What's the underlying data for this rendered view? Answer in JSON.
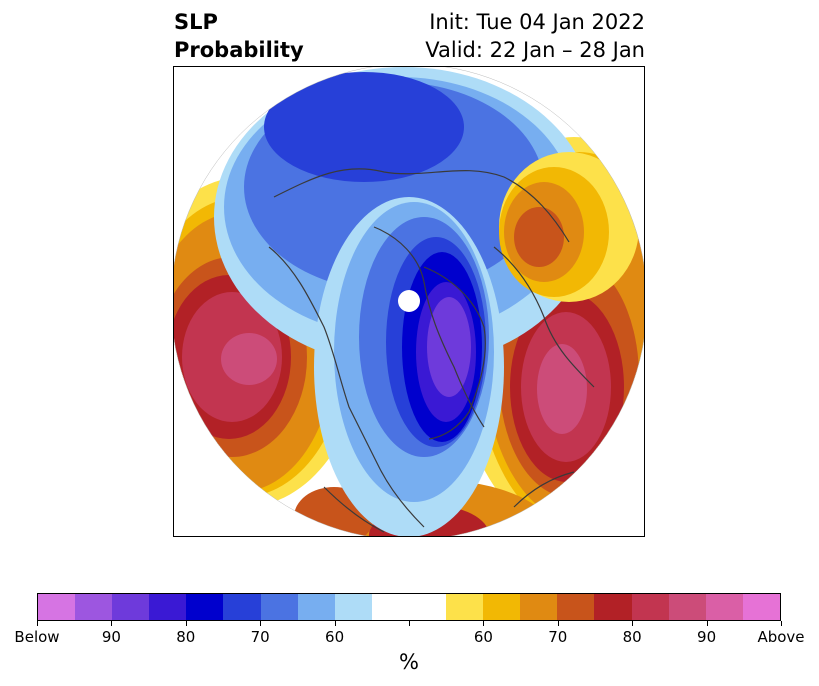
{
  "title": {
    "left_line1": "SLP",
    "left_line2": "Probability",
    "right_line1": "Init: Tue 04 Jan 2022",
    "right_line2": "Valid: 22 Jan – 28 Jan"
  },
  "colorbar": {
    "unit": "%",
    "colors": [
      "#d674e3",
      "#9d56e0",
      "#6e3adb",
      "#3a19d4",
      "#0000cd",
      "#2740d8",
      "#4b73e2",
      "#77aef0",
      "#aedcf7",
      "#ffffff",
      "#ffffff",
      "#fde14a",
      "#f2b804",
      "#e08a12",
      "#c8541b",
      "#b22126",
      "#c23550",
      "#cc4c79",
      "#da5fa6",
      "#e672d6"
    ],
    "ticks": [
      "Below",
      "90",
      "80",
      "70",
      "60",
      "",
      "60",
      "70",
      "80",
      "90",
      "Above"
    ]
  },
  "map": {
    "features": [
      "polar-stereographic-projection",
      "coastlines",
      "country-borders",
      "us-state-borders",
      "probability-contours"
    ]
  }
}
